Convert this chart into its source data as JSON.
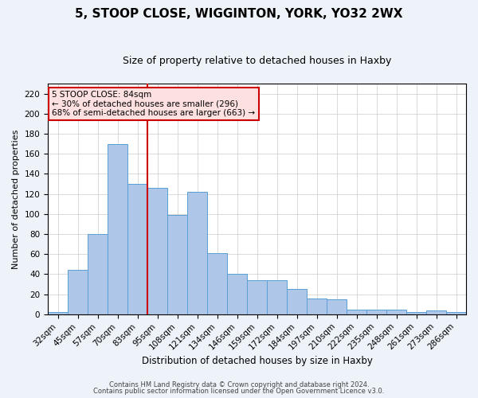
{
  "title": "5, STOOP CLOSE, WIGGINTON, YORK, YO32 2WX",
  "subtitle": "Size of property relative to detached houses in Haxby",
  "xlabel": "Distribution of detached houses by size in Haxby",
  "ylabel": "Number of detached properties",
  "categories": [
    "32sqm",
    "45sqm",
    "57sqm",
    "70sqm",
    "83sqm",
    "95sqm",
    "108sqm",
    "121sqm",
    "134sqm",
    "146sqm",
    "159sqm",
    "172sqm",
    "184sqm",
    "197sqm",
    "210sqm",
    "222sqm",
    "235sqm",
    "248sqm",
    "261sqm",
    "273sqm",
    "286sqm"
  ],
  "values": [
    2,
    44,
    80,
    170,
    130,
    126,
    99,
    122,
    61,
    40,
    34,
    34,
    25,
    16,
    15,
    5,
    5,
    5,
    2,
    4,
    2
  ],
  "bar_color": "#aec6e8",
  "bar_edge_color": "#5a9fd4",
  "marker_bar_index": 4,
  "ylim": [
    0,
    230
  ],
  "yticks": [
    0,
    20,
    40,
    60,
    80,
    100,
    120,
    140,
    160,
    180,
    200,
    220
  ],
  "annotation_title": "5 STOOP CLOSE: 84sqm",
  "annotation_line1": "← 30% of detached houses are smaller (296)",
  "annotation_line2": "68% of semi-detached houses are larger (663) →",
  "footer1": "Contains HM Land Registry data © Crown copyright and database right 2024.",
  "footer2": "Contains public sector information licensed under the Open Government Licence v3.0.",
  "bg_color": "#eef2f9",
  "plot_bg_color": "#ffffff",
  "grid_color": "#cccccc",
  "red_line_color": "#cc0000",
  "annotation_box_facecolor": "#fde0e0",
  "annotation_box_edgecolor": "#cc0000",
  "title_fontsize": 11,
  "subtitle_fontsize": 9,
  "ylabel_fontsize": 8,
  "xlabel_fontsize": 8.5,
  "tick_fontsize": 7.5,
  "footer_fontsize": 6,
  "annotation_fontsize": 7.5
}
